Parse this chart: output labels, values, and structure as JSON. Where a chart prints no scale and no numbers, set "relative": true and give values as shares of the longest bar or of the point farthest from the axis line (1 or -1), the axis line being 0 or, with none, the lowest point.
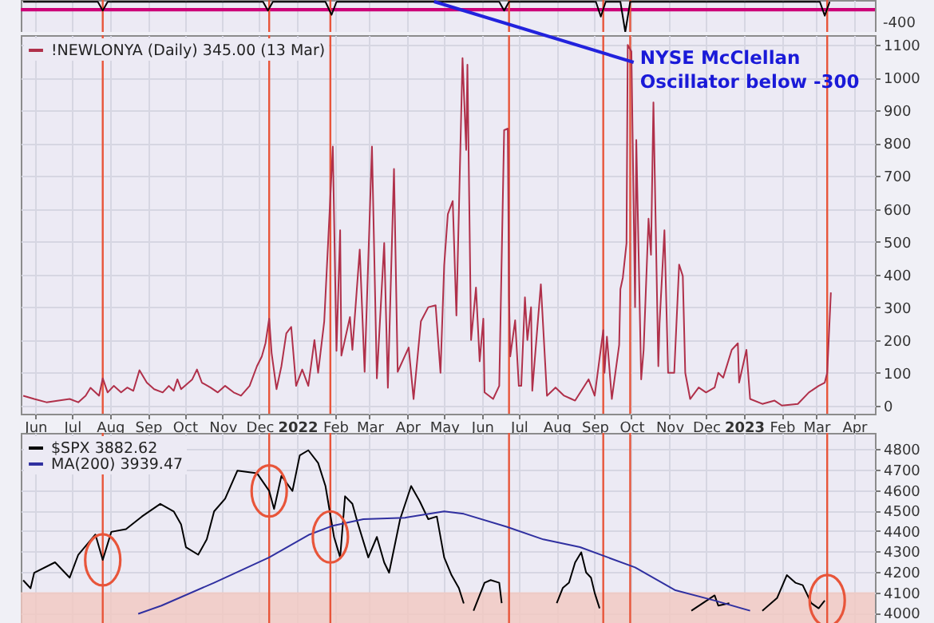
{
  "chart_data": [
    {
      "type": "line",
      "relative": true,
      "series": [
        {
          "color": "#000000",
          "x": [
            "2021-05-22",
            "2021-07-22",
            "2021-07-26",
            "2021-07-30",
            "2021-12-04",
            "2021-12-08",
            "2021-12-12",
            "2022-01-24",
            "2022-01-29",
            "2022-02-02",
            "2022-06-15",
            "2022-06-19",
            "2022-06-23",
            "2022-09-02",
            "2022-09-06",
            "2022-09-10",
            "2022-09-22",
            "2022-09-26",
            "2022-09-30",
            "2023-03-04",
            "2023-03-08",
            "2023-03-12"
          ],
          "values": [
            1,
            1,
            0.71,
            1,
            1,
            0.71,
            1,
            1,
            0.57,
            1,
            1,
            0.71,
            1,
            1,
            0.51,
            1,
            1,
            0,
            1,
            1,
            0.54,
            1
          ]
        }
      ],
      "xlim": [
        "2021-05-20",
        "2023-04-18"
      ],
      "xticks": [
        {
          "value": "2021-06-01",
          "label": null
        },
        {
          "value": "2021-07-01",
          "label": null
        },
        {
          "value": "2021-08-01",
          "label": null
        },
        {
          "value": "2021-09-01",
          "label": null
        },
        {
          "value": "2021-10-01",
          "label": null
        },
        {
          "value": "2021-11-01",
          "label": null
        },
        {
          "value": "2021-12-01",
          "label": null
        },
        {
          "value": "2022-01-01",
          "label": null
        },
        {
          "value": "2022-02-01",
          "label": null
        },
        {
          "value": "2022-03-01",
          "label": null
        },
        {
          "value": "2022-04-01",
          "label": null
        },
        {
          "value": "2022-05-01",
          "label": null
        },
        {
          "value": "2022-06-01",
          "label": null
        },
        {
          "value": "2022-07-01",
          "label": null
        },
        {
          "value": "2022-08-01",
          "label": null
        },
        {
          "value": "2022-09-01",
          "label": null
        },
        {
          "value": "2022-10-01",
          "label": null
        },
        {
          "value": "2022-11-01",
          "label": null
        },
        {
          "value": "2022-12-01",
          "label": null
        },
        {
          "value": "2023-01-01",
          "label": null
        },
        {
          "value": "2023-02-01",
          "label": null
        },
        {
          "value": "2023-03-01",
          "label": null
        },
        {
          "value": "2023-04-01",
          "label": null
        }
      ],
      "ref_lines": [
        {
          "axis": "y",
          "value": 0.74,
          "color": "#cc0077"
        },
        {
          "axis": "x",
          "value": "2021-07-26",
          "color": "#e8553a"
        },
        {
          "axis": "x",
          "value": "2021-12-09",
          "color": "#e8553a"
        },
        {
          "axis": "x",
          "value": "2022-01-28",
          "color": "#e8553a"
        },
        {
          "axis": "x",
          "value": "2022-06-23",
          "color": "#e8553a"
        },
        {
          "axis": "x",
          "value": "2022-09-08",
          "color": "#e8553a"
        },
        {
          "axis": "x",
          "value": "2022-09-30",
          "color": "#e8553a"
        },
        {
          "axis": "x",
          "value": "2023-03-10",
          "color": "#e8553a"
        }
      ],
      "annotations": [
        "-400"
      ],
      "grid": "x",
      "tick_labels": false
    },
    {
      "type": "line",
      "series": [
        {
          "name": "!NEWLONYA (Daily) 345.00 (13 Mar)",
          "color": "#b0304a",
          "values": [
            30,
            20,
            10,
            15,
            20,
            10,
            30,
            54,
            30,
            83,
            40,
            60,
            40,
            55,
            45,
            108,
            70,
            50,
            40,
            60,
            45,
            80,
            50,
            79,
            110,
            70,
            55,
            40,
            60,
            40,
            30,
            60,
            120,
            150,
            190,
            265,
            160,
            50,
            120,
            220,
            240,
            60,
            110,
            60,
            200,
            100,
            257,
            790,
            167,
            535,
            152,
            270,
            170,
            476,
            103,
            790,
            83,
            496,
            54,
            722,
            103,
            177,
            20,
            257,
            300,
            306,
            100,
            427,
            584,
            624,
            275,
            1060,
            780,
            1040,
            200,
            360,
            135,
            265,
            40,
            20,
            60,
            840,
            845,
            330,
            150,
            260,
            60,
            60,
            330,
            200,
            300,
            45,
            370,
            30,
            55,
            30,
            20,
            15,
            80,
            30,
            230,
            100,
            210,
            20,
            185,
            355,
            390,
            495,
            1100,
            1080,
            300,
            810,
            80,
            170,
            570,
            460,
            925,
            120,
            250,
            535,
            100,
            100,
            430,
            395,
            100,
            20,
            55,
            40,
            55,
            100,
            85,
            170,
            190,
            70,
            170,
            20,
            5,
            15,
            0,
            5,
            40,
            60,
            70,
            100,
            345
          ]
        }
      ],
      "x": [
        "2021-05-22",
        "2021-05-31",
        "2021-06-10",
        "2021-06-20",
        "2021-06-29",
        "2021-07-06",
        "2021-07-12",
        "2021-07-16",
        "2021-07-23",
        "2021-07-26",
        "2021-07-30",
        "2021-08-04",
        "2021-08-10",
        "2021-08-15",
        "2021-08-20",
        "2021-08-25",
        "2021-08-31",
        "2021-09-06",
        "2021-09-13",
        "2021-09-18",
        "2021-09-22",
        "2021-09-25",
        "2021-09-28",
        "2021-10-07",
        "2021-10-11",
        "2021-10-15",
        "2021-10-22",
        "2021-10-28",
        "2021-11-03",
        "2021-11-10",
        "2021-11-16",
        "2021-11-23",
        "2021-11-29",
        "2021-12-03",
        "2021-12-06",
        "2021-12-09",
        "2021-12-11",
        "2021-12-15",
        "2021-12-19",
        "2021-12-23",
        "2021-12-27",
        "2021-12-31",
        "2022-01-05",
        "2022-01-10",
        "2022-01-15",
        "2022-01-18",
        "2022-01-23",
        "2022-01-30",
        "2022-02-02",
        "2022-02-05",
        "2022-02-06",
        "2022-02-13",
        "2022-02-15",
        "2022-02-21",
        "2022-02-25",
        "2022-03-03",
        "2022-03-07",
        "2022-03-13",
        "2022-03-16",
        "2022-03-21",
        "2022-03-24",
        "2022-04-02",
        "2022-04-06",
        "2022-04-12",
        "2022-04-18",
        "2022-04-24",
        "2022-04-28",
        "2022-05-01",
        "2022-05-04",
        "2022-05-08",
        "2022-05-11",
        "2022-05-16",
        "2022-05-19",
        "2022-05-20",
        "2022-05-23",
        "2022-05-27",
        "2022-05-30",
        "2022-06-02",
        "2022-06-03",
        "2022-06-10",
        "2022-06-15",
        "2022-06-19",
        "2022-06-22",
        "2022-06-23",
        "2022-06-24",
        "2022-06-28",
        "2022-07-01",
        "2022-07-03",
        "2022-07-06",
        "2022-07-08",
        "2022-07-11",
        "2022-07-12",
        "2022-07-19",
        "2022-07-24",
        "2022-07-31",
        "2022-08-07",
        "2022-08-13",
        "2022-08-16",
        "2022-08-27",
        "2022-09-01",
        "2022-09-08",
        "2022-09-09",
        "2022-09-11",
        "2022-09-15",
        "2022-09-21",
        "2022-09-22",
        "2022-09-24",
        "2022-09-27",
        "2022-09-28",
        "2022-10-01",
        "2022-10-04",
        "2022-10-05",
        "2022-10-09",
        "2022-10-11",
        "2022-10-15",
        "2022-10-17",
        "2022-10-19",
        "2022-10-23",
        "2022-10-24",
        "2022-10-28",
        "2022-10-31",
        "2022-11-05",
        "2022-11-09",
        "2022-11-12",
        "2022-11-14",
        "2022-11-18",
        "2022-11-25",
        "2022-12-01",
        "2022-12-08",
        "2022-12-11",
        "2022-12-15",
        "2022-12-22",
        "2022-12-27",
        "2022-12-28",
        "2023-01-03",
        "2023-01-06",
        "2023-01-16",
        "2023-01-26",
        "2023-02-01",
        "2023-02-14",
        "2023-02-23",
        "2023-03-03",
        "2023-03-08",
        "2023-03-10",
        "2023-03-13"
      ],
      "xlim": [
        "2021-05-20",
        "2023-04-18"
      ],
      "xticks": [
        {
          "value": "2021-06-01",
          "label": "Jun"
        },
        {
          "value": "2021-07-01",
          "label": "Jul"
        },
        {
          "value": "2021-08-01",
          "label": "Aug"
        },
        {
          "value": "2021-09-01",
          "label": "Sep"
        },
        {
          "value": "2021-10-01",
          "label": "Oct"
        },
        {
          "value": "2021-11-01",
          "label": "Nov"
        },
        {
          "value": "2021-12-01",
          "label": "Dec"
        },
        {
          "value": "2022-01-01",
          "label": "2022"
        },
        {
          "value": "2022-02-01",
          "label": "Feb"
        },
        {
          "value": "2022-03-01",
          "label": "Mar"
        },
        {
          "value": "2022-04-01",
          "label": "Apr"
        },
        {
          "value": "2022-05-01",
          "label": "May"
        },
        {
          "value": "2022-06-01",
          "label": "Jun"
        },
        {
          "value": "2022-07-01",
          "label": "Jul"
        },
        {
          "value": "2022-08-01",
          "label": "Aug"
        },
        {
          "value": "2022-09-01",
          "label": "Sep"
        },
        {
          "value": "2022-10-01",
          "label": "Oct"
        },
        {
          "value": "2022-11-01",
          "label": "Nov"
        },
        {
          "value": "2022-12-01",
          "label": "Dec"
        },
        {
          "value": "2023-01-01",
          "label": "2023"
        },
        {
          "value": "2023-02-01",
          "label": "Feb"
        },
        {
          "value": "2023-03-01",
          "label": "Mar"
        },
        {
          "value": "2023-04-01",
          "label": "Apr"
        }
      ],
      "ylim": [
        -25,
        1130
      ],
      "yticks": [
        0,
        100,
        200,
        300,
        400,
        500,
        600,
        700,
        800,
        900,
        1000,
        1100
      ],
      "ref_lines": [
        {
          "axis": "x",
          "value": "2021-07-26",
          "color": "#e8553a"
        },
        {
          "axis": "x",
          "value": "2021-12-09",
          "color": "#e8553a"
        },
        {
          "axis": "x",
          "value": "2022-01-28",
          "color": "#e8553a"
        },
        {
          "axis": "x",
          "value": "2022-06-23",
          "color": "#e8553a"
        },
        {
          "axis": "x",
          "value": "2022-09-08",
          "color": "#e8553a"
        },
        {
          "axis": "x",
          "value": "2022-09-30",
          "color": "#e8553a"
        },
        {
          "axis": "x",
          "value": "2023-03-10",
          "color": "#e8553a"
        }
      ],
      "annotations": [
        "NYSE McClellan Oscillator below -300"
      ],
      "grid": true,
      "legend": "top left"
    },
    {
      "type": "line",
      "series": [
        {
          "name": "$SPX 3882.62",
          "color": "#000000",
          "x": [
            "2021-05-22",
            "2021-05-28",
            "2021-05-31",
            "2021-06-17",
            "2021-06-29",
            "2021-07-06",
            "2021-07-20",
            "2021-07-26",
            "2021-08-02",
            "2021-08-14",
            "2021-08-27",
            "2021-09-11",
            "2021-09-22",
            "2021-09-28",
            "2021-10-02",
            "2021-10-12",
            "2021-10-19",
            "2021-10-25",
            "2021-11-03",
            "2021-11-13",
            "2021-11-29",
            "2021-12-09",
            "2021-12-13",
            "2021-12-19",
            "2021-12-28",
            "2022-01-03",
            "2022-01-10",
            "2022-01-18",
            "2022-01-24",
            "2022-01-31",
            "2022-02-05",
            "2022-02-09",
            "2022-02-15",
            "2022-02-19",
            "2022-02-28",
            "2022-03-07",
            "2022-03-13",
            "2022-03-17",
            "2022-03-26",
            "2022-04-04",
            "2022-04-11",
            "2022-04-18",
            "2022-04-25",
            "2022-05-01",
            "2022-05-07",
            "2022-05-13",
            "2022-05-17",
            "2022-05-21",
            "2022-05-25",
            "2022-06-03",
            "2022-06-08",
            "2022-06-15",
            "2022-06-17",
            "2022-06-20",
            "2022-08-01",
            "2022-08-06",
            "2022-08-11",
            "2022-08-16",
            "2022-08-21",
            "2022-08-25",
            "2022-08-29",
            "2022-09-01",
            "2022-09-05",
            "2022-09-09",
            "2022-11-19",
            "2022-12-08",
            "2022-12-11",
            "2022-12-20",
            "2022-12-28",
            "2023-01-16",
            "2023-01-28",
            "2023-02-05",
            "2023-02-12",
            "2023-02-18",
            "2023-02-25",
            "2023-03-03",
            "2023-03-08"
          ],
          "values": [
            4159,
            4120,
            4196,
            4247,
            4172,
            4284,
            4383,
            4259,
            4396,
            4409,
            4471,
            4533,
            4496,
            4433,
            4321,
            4284,
            4359,
            4496,
            4558,
            4695,
            4683,
            4596,
            4508,
            4670,
            4596,
            4770,
            4795,
            4733,
            4620,
            4371,
            4271,
            4570,
            4533,
            4446,
            4271,
            4371,
            4246,
            4196,
            4458,
            4620,
            4546,
            4458,
            4471,
            4271,
            4184,
            4121,
            4046,
            null,
            4010,
            4147,
            4160,
            4147,
            4047,
            null,
            4047,
            4122,
            4147,
            4246,
            4296,
            4197,
            4172,
            4097,
            4022,
            null,
            4010,
            4085,
            4035,
            4047,
            null,
            4010,
            4072,
            4184,
            4147,
            4135,
            4047,
            4022,
            4060
          ]
        },
        {
          "name": "MA(200) 3939.47",
          "color": "#3030a0",
          "x": [
            "2021-08-24",
            "2021-09-12",
            "2021-10-25",
            "2021-12-09",
            "2022-01-11",
            "2022-01-30",
            "2022-02-24",
            "2022-03-30",
            "2022-05-01",
            "2022-05-17",
            "2022-06-21",
            "2022-07-21",
            "2022-08-20",
            "2022-10-04",
            "2022-11-06",
            "2022-12-08",
            "2023-01-06"
          ],
          "values": [
            3995,
            4035,
            4147,
            4271,
            4383,
            4426,
            4458,
            4465,
            4496,
            4484,
            4421,
            4359,
            4321,
            4222,
            4110,
            4060,
            4010
          ]
        }
      ],
      "xlim": [
        "2021-05-20",
        "2023-04-18"
      ],
      "xticks": [
        {
          "value": "2021-06-01",
          "label": null
        },
        {
          "value": "2021-07-01",
          "label": null
        },
        {
          "value": "2021-08-01",
          "label": null
        },
        {
          "value": "2021-09-01",
          "label": null
        },
        {
          "value": "2021-10-01",
          "label": null
        },
        {
          "value": "2021-11-01",
          "label": null
        },
        {
          "value": "2021-12-01",
          "label": null
        },
        {
          "value": "2022-01-01",
          "label": null
        },
        {
          "value": "2022-02-01",
          "label": null
        },
        {
          "value": "2022-03-01",
          "label": null
        },
        {
          "value": "2022-04-01",
          "label": null
        },
        {
          "value": "2022-05-01",
          "label": null
        },
        {
          "value": "2022-06-01",
          "label": null
        },
        {
          "value": "2022-07-01",
          "label": null
        },
        {
          "value": "2022-08-01",
          "label": null
        },
        {
          "value": "2022-09-01",
          "label": null
        },
        {
          "value": "2022-10-01",
          "label": null
        },
        {
          "value": "2022-11-01",
          "label": null
        },
        {
          "value": "2022-12-01",
          "label": null
        },
        {
          "value": "2023-01-01",
          "label": null
        },
        {
          "value": "2023-02-01",
          "label": null
        },
        {
          "value": "2023-03-01",
          "label": null
        },
        {
          "value": "2023-04-01",
          "label": null
        }
      ],
      "ylim": [
        3950,
        4880
      ],
      "yticks": [
        4000,
        4100,
        4200,
        4300,
        4400,
        4500,
        4600,
        4700,
        4800
      ],
      "ref_lines": [
        {
          "axis": "x",
          "value": "2021-07-26",
          "color": "#e8553a"
        },
        {
          "axis": "x",
          "value": "2021-12-09",
          "color": "#e8553a"
        },
        {
          "axis": "x",
          "value": "2022-01-28",
          "color": "#e8553a"
        },
        {
          "axis": "x",
          "value": "2022-06-23",
          "color": "#e8553a"
        },
        {
          "axis": "x",
          "value": "2022-09-08",
          "color": "#e8553a"
        },
        {
          "axis": "x",
          "value": "2022-09-30",
          "color": "#e8553a"
        },
        {
          "axis": "x",
          "value": "2023-03-10",
          "color": "#e8553a"
        }
      ],
      "bands": [
        {
          "axis": "y",
          "from": 3950,
          "to": 4100,
          "color": "#f2c8c0"
        }
      ],
      "grid": true,
      "legend": "top left",
      "tick_labels": "y"
    }
  ]
}
